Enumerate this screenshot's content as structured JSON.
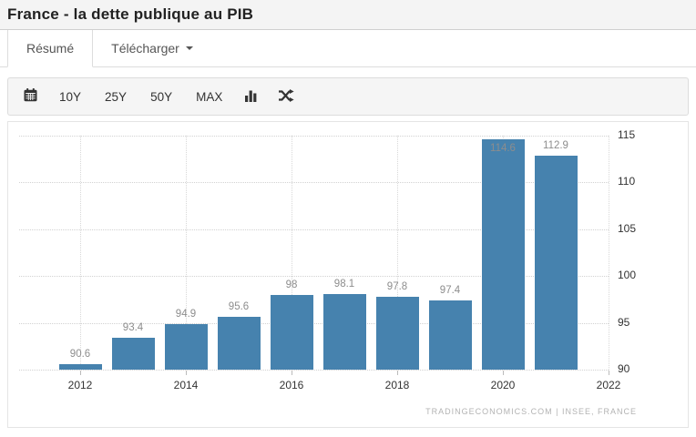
{
  "page": {
    "title": "France - la dette publique au PIB"
  },
  "tabs": [
    {
      "label": "Résumé",
      "active": true
    },
    {
      "label": "Télécharger",
      "has_dropdown": true
    }
  ],
  "toolbar": {
    "calendar_icon": "calendar-icon",
    "range_buttons": [
      "10Y",
      "25Y",
      "50Y",
      "MAX"
    ],
    "column_chart_icon": "column-chart-icon",
    "compare_icon": "shuffle-icon"
  },
  "chart_data": {
    "type": "bar",
    "title": "",
    "categories": [
      2012,
      2013,
      2014,
      2015,
      2016,
      2017,
      2018,
      2019,
      2020,
      2021
    ],
    "values": [
      90.6,
      93.4,
      94.9,
      95.6,
      98,
      98.1,
      97.8,
      97.4,
      114.6,
      112.9
    ],
    "bar_color": "#4682ae",
    "value_label_color": "#8d8d8d",
    "x_ticks": [
      2012,
      2014,
      2016,
      2018,
      2020,
      2022
    ],
    "y_ticks": [
      90,
      95,
      100,
      105,
      110,
      115
    ],
    "ylim": [
      90,
      115
    ],
    "grid": true,
    "y_axis_position": "right",
    "attribution": "TRADINGECONOMICS.COM | INSEE, FRANCE"
  }
}
